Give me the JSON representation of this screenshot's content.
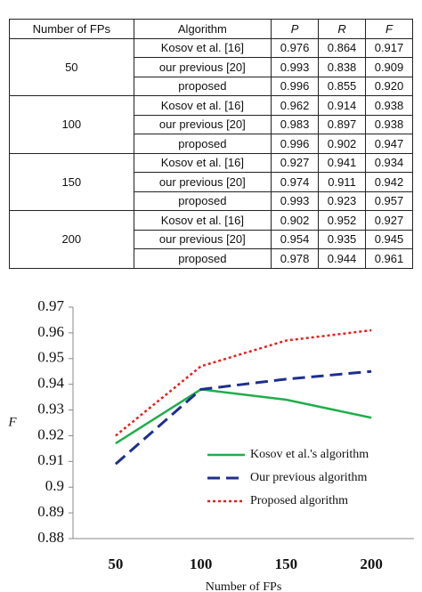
{
  "table": {
    "header": [
      "Number of FPs",
      "Algorithm",
      "P",
      "R",
      "F"
    ],
    "groups": [
      {
        "fps": "50",
        "rows": [
          [
            "Kosov et al. [16]",
            "0.976",
            "0.864",
            "0.917"
          ],
          [
            "our previous [20]",
            "0.993",
            "0.838",
            "0.909"
          ],
          [
            "proposed",
            "0.996",
            "0.855",
            "0.920"
          ]
        ]
      },
      {
        "fps": "100",
        "rows": [
          [
            "Kosov et al. [16]",
            "0.962",
            "0.914",
            "0.938"
          ],
          [
            "our previous [20]",
            "0.983",
            "0.897",
            "0.938"
          ],
          [
            "proposed",
            "0.996",
            "0.902",
            "0.947"
          ]
        ]
      },
      {
        "fps": "150",
        "rows": [
          [
            "Kosov et al. [16]",
            "0.927",
            "0.941",
            "0.934"
          ],
          [
            "our previous [20]",
            "0.974",
            "0.911",
            "0.942"
          ],
          [
            "proposed",
            "0.993",
            "0.923",
            "0.957"
          ]
        ]
      },
      {
        "fps": "200",
        "rows": [
          [
            "Kosov et al. [16]",
            "0.902",
            "0.952",
            "0.927"
          ],
          [
            "our previous [20]",
            "0.954",
            "0.935",
            "0.945"
          ],
          [
            "proposed",
            "0.978",
            "0.944",
            "0.961"
          ]
        ]
      }
    ]
  },
  "chart_data": {
    "type": "line",
    "xlabel": "Number of FPs",
    "ylabel": "F",
    "categories": [
      50,
      100,
      150,
      200
    ],
    "series": [
      {
        "name": "Kosov et al.'s algorithm",
        "color": "#1fae4b",
        "dash": "solid",
        "values": [
          0.917,
          0.938,
          0.934,
          0.927
        ]
      },
      {
        "name": "Our previous algorithm",
        "color": "#1f2f8f",
        "dash": "dashed",
        "values": [
          0.909,
          0.938,
          0.942,
          0.945
        ]
      },
      {
        "name": "Proposed algorithm",
        "color": "#e8201e",
        "dash": "dotted",
        "values": [
          0.92,
          0.947,
          0.957,
          0.961
        ]
      }
    ],
    "ylim": [
      0.88,
      0.97
    ],
    "yticks": [
      0.88,
      0.89,
      0.9,
      0.91,
      0.92,
      0.93,
      0.94,
      0.95,
      0.96,
      0.97
    ],
    "legend": "lower right"
  }
}
